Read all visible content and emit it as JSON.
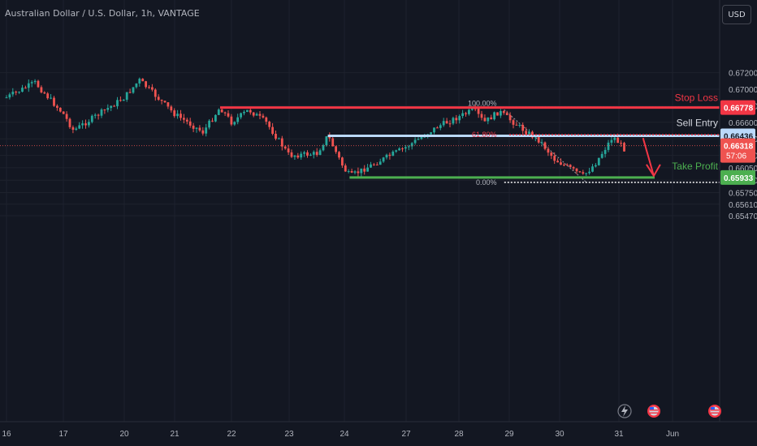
{
  "header": {
    "symbol_title": "Australian Dollar / U.S. Dollar, 1h, VANTAGE",
    "currency_button": "USD"
  },
  "colors": {
    "background": "#131722",
    "grid": "#1e222d",
    "axis_text": "#b2b5be",
    "up_candle": "#26a69a",
    "down_candle": "#ef5350",
    "stop_loss": "#f23645",
    "sell_entry": "#bbd9fb",
    "take_profit": "#4caf50",
    "arrow": "#f23645"
  },
  "chart_data": {
    "type": "candlestick",
    "title": "Australian Dollar / U.S. Dollar, 1h, VANTAGE",
    "y_axis": {
      "labels": [
        "0.67200",
        "0.67000",
        "0.66800",
        "0.66600",
        "0.66400",
        "0.66200",
        "0.66050",
        "0.65900",
        "0.65750",
        "0.65610",
        "0.65470"
      ],
      "range": [
        0.6544,
        0.6732
      ]
    },
    "x_axis": {
      "labels": [
        "16",
        "17",
        "20",
        "21",
        "22",
        "23",
        "24",
        "27",
        "28",
        "29",
        "30",
        "31",
        "Jun"
      ]
    },
    "price_path": [
      {
        "x": "16",
        "price": 0.669
      },
      {
        "x": "16.5",
        "price": 0.6708
      },
      {
        "x": "17",
        "price": 0.667
      },
      {
        "x": "17.5",
        "price": 0.665
      },
      {
        "x": "20",
        "price": 0.669
      },
      {
        "x": "20.3",
        "price": 0.6711
      },
      {
        "x": "21",
        "price": 0.667
      },
      {
        "x": "21.5",
        "price": 0.6648
      },
      {
        "x": "21.8",
        "price": 0.6678
      },
      {
        "x": "22",
        "price": 0.666
      },
      {
        "x": "22.3",
        "price": 0.6675
      },
      {
        "x": "22.6",
        "price": 0.666
      },
      {
        "x": "23",
        "price": 0.662
      },
      {
        "x": "23.5",
        "price": 0.6622
      },
      {
        "x": "23.7",
        "price": 0.6644
      },
      {
        "x": "24",
        "price": 0.6603
      },
      {
        "x": "24.3",
        "price": 0.6595
      },
      {
        "x": "27",
        "price": 0.663
      },
      {
        "x": "27.6",
        "price": 0.6655
      },
      {
        "x": "28.3",
        "price": 0.6675
      },
      {
        "x": "28.5",
        "price": 0.666
      },
      {
        "x": "28.8",
        "price": 0.6673
      },
      {
        "x": "29.3",
        "price": 0.665
      },
      {
        "x": "29.6",
        "price": 0.6638
      },
      {
        "x": "29.9",
        "price": 0.6615
      },
      {
        "x": "30.4",
        "price": 0.6595
      },
      {
        "x": "30.6",
        "price": 0.661
      },
      {
        "x": "30.9",
        "price": 0.6643
      },
      {
        "x": "31.1",
        "price": 0.6628
      }
    ],
    "horizontal_levels": [
      {
        "name": "Stop Loss",
        "price": 0.66778,
        "label": "0.66778"
      },
      {
        "name": "Sell Entry",
        "price": 0.66436,
        "label": "0.66436"
      },
      {
        "name": "Take Profit",
        "price": 0.65933,
        "label": "0.65933"
      }
    ],
    "current_price": {
      "label": "0.66318",
      "countdown": "57:06"
    },
    "fibonacci": [
      {
        "level": "100.00%",
        "price": 0.66778
      },
      {
        "level": "61.80%",
        "price": 0.6645
      },
      {
        "level": "0.00%",
        "price": 0.65933
      }
    ],
    "grid": true
  },
  "annotations": {
    "stop_loss_label": "Stop Loss",
    "sell_entry_label": "Sell Entry",
    "take_profit_label": "Take Profit"
  },
  "icons": [
    "lightning-icon",
    "us-flag-event-icon",
    "us-flag-event-icon-2"
  ]
}
